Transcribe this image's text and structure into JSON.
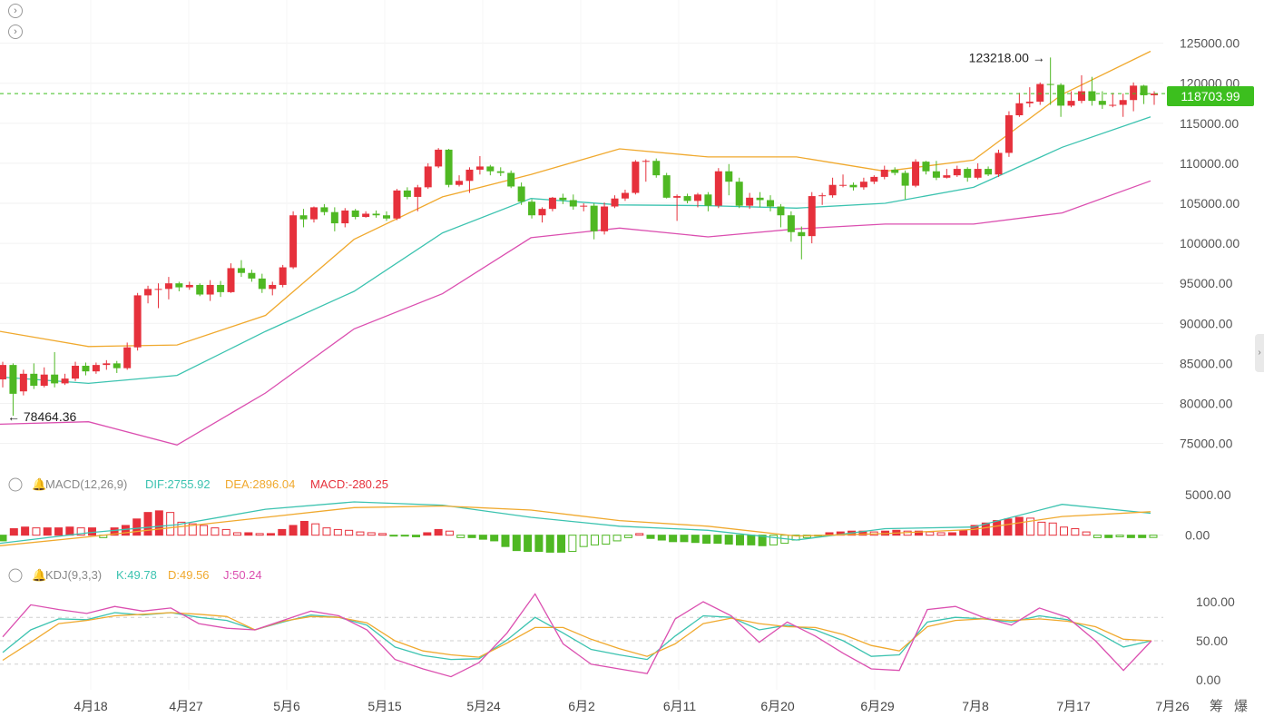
{
  "chart_data": {
    "type": "candlestick",
    "symbol_interval": "1 day",
    "x_ticks": [
      "4月18",
      "4月27",
      "5月6",
      "5月15",
      "5月24",
      "6月2",
      "6月11",
      "6月20",
      "6月29",
      "7月8",
      "7月17",
      "7月26"
    ],
    "y_ticks": [
      "125000.00",
      "120000.00",
      "115000.00",
      "110000.00",
      "105000.00",
      "100000.00",
      "95000.00",
      "90000.00",
      "85000.00",
      "80000.00",
      "75000.00"
    ],
    "ylim": [
      72000,
      127000
    ],
    "last_price": "118703.99",
    "max_label": "123218.00",
    "min_label": "78464.36",
    "candles": [
      [
        83000,
        84800,
        82000,
        85200
      ],
      [
        84800,
        81200,
        78464,
        85000
      ],
      [
        81500,
        83700,
        81000,
        84200
      ],
      [
        83700,
        82200,
        81800,
        85000
      ],
      [
        82200,
        83600,
        82000,
        84500
      ],
      [
        83600,
        82500,
        82000,
        86400
      ],
      [
        82500,
        83100,
        82300,
        83700
      ],
      [
        83100,
        84700,
        82800,
        85200
      ],
      [
        84700,
        84000,
        83500,
        85100
      ],
      [
        84000,
        84800,
        83700,
        85100
      ],
      [
        84800,
        85000,
        84200,
        85400
      ],
      [
        85000,
        84400,
        83800,
        85300
      ],
      [
        84400,
        87000,
        84200,
        87600
      ],
      [
        87000,
        93500,
        86600,
        93800
      ],
      [
        93500,
        94300,
        92500,
        94700
      ],
      [
        94300,
        94300,
        91900,
        95000
      ],
      [
        94300,
        95000,
        93000,
        95800
      ],
      [
        95000,
        94500,
        94000,
        95200
      ],
      [
        94500,
        94800,
        94200,
        95200
      ],
      [
        94800,
        93600,
        93400,
        95000
      ],
      [
        93600,
        94800,
        92800,
        95400
      ],
      [
        94800,
        93900,
        93300,
        95300
      ],
      [
        93900,
        96900,
        93800,
        97500
      ],
      [
        96900,
        96300,
        95800,
        97900
      ],
      [
        96300,
        95600,
        95200,
        96700
      ],
      [
        95600,
        94300,
        93800,
        96200
      ],
      [
        94300,
        94800,
        93500,
        95200
      ],
      [
        94800,
        97000,
        94500,
        97300
      ],
      [
        97000,
        103500,
        96800,
        104000
      ],
      [
        103500,
        103000,
        102000,
        104300
      ],
      [
        103000,
        104500,
        102600,
        104600
      ],
      [
        104500,
        103900,
        103500,
        104900
      ],
      [
        103900,
        102500,
        101500,
        104500
      ],
      [
        102500,
        104100,
        102000,
        104400
      ],
      [
        104100,
        103300,
        103000,
        104300
      ],
      [
        103300,
        103700,
        103200,
        104000
      ],
      [
        103700,
        103500,
        103200,
        104100
      ],
      [
        103500,
        103100,
        102800,
        104000
      ],
      [
        103100,
        106600,
        102900,
        106800
      ],
      [
        106600,
        105800,
        105500,
        107000
      ],
      [
        105800,
        107000,
        104000,
        107300
      ],
      [
        107000,
        109600,
        106800,
        110000
      ],
      [
        109600,
        111700,
        109400,
        111900
      ],
      [
        111700,
        107300,
        107000,
        111800
      ],
      [
        107300,
        107800,
        107100,
        108500
      ],
      [
        107800,
        109200,
        106300,
        109500
      ],
      [
        109200,
        109600,
        108600,
        110900
      ],
      [
        109600,
        109000,
        108500,
        109800
      ],
      [
        109000,
        108800,
        108400,
        109500
      ],
      [
        108800,
        107100,
        106900,
        109100
      ],
      [
        107100,
        105200,
        104800,
        107600
      ],
      [
        105200,
        103500,
        103100,
        105500
      ],
      [
        103500,
        104300,
        102600,
        104500
      ],
      [
        104300,
        105700,
        104000,
        105800
      ],
      [
        105700,
        105400,
        104900,
        106200
      ],
      [
        105400,
        104600,
        104200,
        106100
      ],
      [
        104600,
        104700,
        104000,
        105000
      ],
      [
        104700,
        101500,
        100500,
        105000
      ],
      [
        101500,
        104600,
        101100,
        105100
      ],
      [
        104600,
        105600,
        104400,
        106000
      ],
      [
        105600,
        106300,
        105300,
        106700
      ],
      [
        106300,
        110200,
        106100,
        110400
      ],
      [
        110200,
        110300,
        107700,
        110500
      ],
      [
        110300,
        108500,
        108200,
        110600
      ],
      [
        108500,
        105700,
        105600,
        108800
      ],
      [
        105700,
        105900,
        102800,
        106100
      ],
      [
        105900,
        105300,
        105000,
        106200
      ],
      [
        105300,
        106100,
        104500,
        106300
      ],
      [
        106100,
        104700,
        104000,
        106400
      ],
      [
        104700,
        109000,
        104400,
        109400
      ],
      [
        109000,
        107700,
        106000,
        109900
      ],
      [
        107700,
        104700,
        104400,
        108200
      ],
      [
        104700,
        105700,
        104300,
        106300
      ],
      [
        105700,
        105400,
        104500,
        106400
      ],
      [
        105400,
        104600,
        104000,
        106000
      ],
      [
        104600,
        103500,
        102000,
        104900
      ],
      [
        103500,
        101400,
        100200,
        104000
      ],
      [
        101400,
        100900,
        98000,
        102100
      ],
      [
        100900,
        105900,
        100000,
        106400
      ],
      [
        105900,
        106000,
        104800,
        106300
      ],
      [
        106000,
        107300,
        105700,
        108200
      ],
      [
        107300,
        107300,
        107000,
        108600
      ],
      [
        107300,
        107000,
        106600,
        107600
      ],
      [
        107000,
        107700,
        106700,
        108200
      ],
      [
        107700,
        108300,
        107400,
        108500
      ],
      [
        108300,
        109200,
        108000,
        109700
      ],
      [
        109200,
        108800,
        108500,
        109500
      ],
      [
        108800,
        107200,
        105500,
        109100
      ],
      [
        107200,
        110200,
        107000,
        110500
      ],
      [
        110200,
        109000,
        108600,
        110300
      ],
      [
        109000,
        108200,
        107900,
        110300
      ],
      [
        108200,
        108500,
        108100,
        109300
      ],
      [
        108500,
        109300,
        108300,
        109700
      ],
      [
        109300,
        108200,
        107700,
        109500
      ],
      [
        108200,
        109300,
        108000,
        110000
      ],
      [
        109300,
        108600,
        108400,
        109600
      ],
      [
        108600,
        111300,
        108300,
        111700
      ],
      [
        111300,
        116000,
        110800,
        116500
      ],
      [
        116000,
        117500,
        115800,
        118800
      ],
      [
        117500,
        117700,
        117000,
        119500
      ],
      [
        117700,
        119900,
        117300,
        120100
      ],
      [
        119900,
        119800,
        117300,
        123218
      ],
      [
        119800,
        117200,
        115800,
        120000
      ],
      [
        117200,
        117800,
        117000,
        119000
      ],
      [
        117800,
        119000,
        117500,
        121000
      ],
      [
        119000,
        117800,
        117200,
        120800
      ],
      [
        117800,
        117300,
        116800,
        119000
      ],
      [
        117300,
        117300,
        117000,
        118800
      ],
      [
        117300,
        117900,
        115800,
        118700
      ],
      [
        117900,
        119700,
        116500,
        120100
      ],
      [
        119700,
        118500,
        117400,
        119800
      ],
      [
        118500,
        118704,
        117300,
        119000
      ]
    ],
    "bollinger": {
      "upper": [
        89000,
        87100,
        87300,
        91000,
        100500,
        105800,
        108600,
        111800,
        110800,
        110800,
        109000,
        110400,
        118600,
        124000
      ],
      "middle": [
        83300,
        82500,
        83500,
        89000,
        94000,
        101300,
        105600,
        104800,
        104700,
        104400,
        105000,
        107000,
        112000,
        115800
      ],
      "lower": [
        77400,
        77700,
        74800,
        81300,
        89300,
        93700,
        100700,
        101900,
        100800,
        101800,
        102400,
        102400,
        103800,
        107800
      ]
    },
    "macd": {
      "title": "MACD(12,26,9)",
      "dif": "DIF:2755.92",
      "dea": "DEA:2896.04",
      "macd": "MACD:-280.25",
      "y_ticks": [
        "5000.00",
        "0.00"
      ],
      "dif_series": [
        -1000,
        300,
        1300,
        3200,
        4100,
        3700,
        2200,
        1100,
        600,
        -600,
        800,
        1000,
        3800,
        2700
      ],
      "dea_series": [
        -1300,
        -200,
        1000,
        2200,
        3400,
        3600,
        3100,
        1800,
        1100,
        -100,
        200,
        700,
        2300,
        2900
      ],
      "hist": [
        -700,
        800,
        1000,
        900,
        900,
        900,
        1000,
        900,
        900,
        -300,
        900,
        1200,
        2000,
        2800,
        3000,
        2800,
        1600,
        1400,
        1200,
        900,
        700,
        300,
        300,
        200,
        200,
        700,
        1200,
        1700,
        1400,
        900,
        700,
        600,
        400,
        300,
        200,
        -100,
        -100,
        -200,
        300,
        700,
        500,
        -300,
        -300,
        -500,
        -700,
        -1400,
        -1900,
        -2000,
        -2000,
        -2100,
        -2100,
        -2000,
        -1400,
        -1200,
        -1100,
        -700,
        -300,
        200,
        -400,
        -600,
        -800,
        -800,
        -900,
        -1000,
        -1000,
        -1100,
        -1200,
        -1200,
        -1300,
        -1200,
        -1000,
        -600,
        -300,
        -100,
        300,
        400,
        500,
        500,
        400,
        500,
        600,
        500,
        500,
        400,
        300,
        300,
        600,
        1200,
        1500,
        1800,
        2000,
        2200,
        2100,
        1600,
        1500,
        1000,
        800,
        400,
        -300,
        -300,
        -200,
        -300,
        -300,
        -280
      ]
    },
    "kdj": {
      "title": "KDJ(9,3,3)",
      "k": "K:49.78",
      "d": "D:49.56",
      "j": "J:50.24",
      "y_ticks": [
        "100.00",
        "50.00",
        "0.00"
      ],
      "k_series": [
        35,
        64,
        78,
        77,
        86,
        83,
        86,
        80,
        76,
        64,
        74,
        83,
        80,
        70,
        42,
        31,
        26,
        27,
        51,
        80,
        60,
        39,
        32,
        26,
        56,
        82,
        80,
        64,
        70,
        64,
        50,
        30,
        32,
        74,
        80,
        78,
        74,
        82,
        77,
        62,
        42,
        50
      ],
      "d_series": [
        25,
        48,
        72,
        76,
        82,
        84,
        86,
        84,
        81,
        64,
        75,
        81,
        80,
        73,
        50,
        37,
        32,
        29,
        47,
        67,
        67,
        52,
        40,
        30,
        46,
        72,
        79,
        72,
        68,
        67,
        58,
        44,
        37,
        68,
        76,
        78,
        76,
        78,
        75,
        68,
        52,
        50
      ],
      "j_series": [
        55,
        96,
        90,
        85,
        94,
        88,
        92,
        72,
        66,
        64,
        76,
        88,
        82,
        64,
        26,
        14,
        4,
        22,
        60,
        110,
        46,
        20,
        14,
        8,
        78,
        100,
        82,
        48,
        74,
        56,
        34,
        14,
        12,
        90,
        94,
        80,
        70,
        92,
        80,
        50,
        12,
        50
      ]
    }
  }
}
